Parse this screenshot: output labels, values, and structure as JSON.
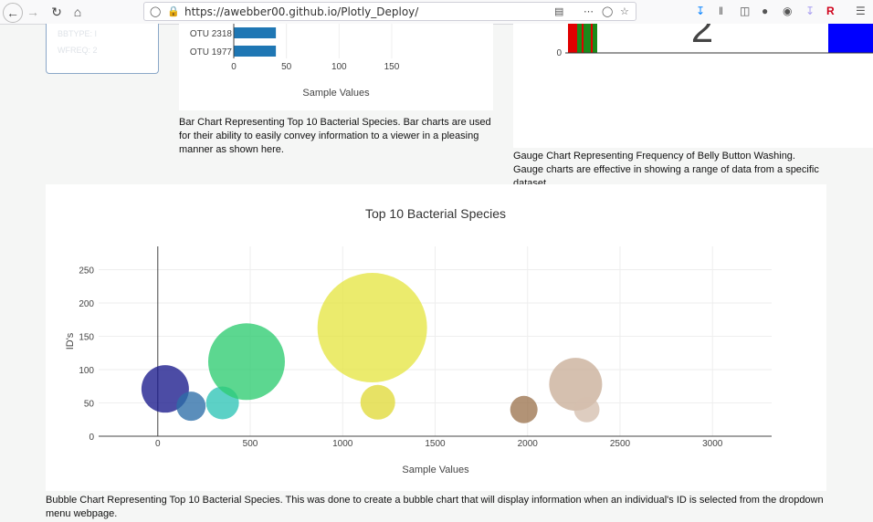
{
  "browser": {
    "url": "https://awebber00.github.io/Plotly_Deploy/"
  },
  "panel": {
    "ghost_lines": [
      "BBTYPE: I",
      "WFREQ: 2"
    ]
  },
  "bar_chart": {
    "y_labels": [
      "OTU 2318",
      "OTU 1977"
    ],
    "x_ticks": [
      "0",
      "50",
      "100",
      "150"
    ],
    "xlabel": "Sample Values",
    "caption": "Bar Chart Representing Top 10 Bacterial Species. Bar charts are used for their ability to easily convey information to a viewer in a pleasing manner as shown here."
  },
  "gauge": {
    "zero_label": "0",
    "value_fragment": "2",
    "caption": "Gauge Chart Representing Frequency of Belly Button Washing. Gauge charts are effective in showing a range of data from a specific dataset."
  },
  "bubble_caption": "Bubble Chart Representing Top 10 Bacterial Species. This was done to create a bubble chart that will display information when an individual's ID is selected from the dropdown menu webpage.",
  "chart_data": [
    {
      "type": "bar",
      "orientation": "horizontal",
      "categories": [
        "OTU 2318",
        "OTU 1977"
      ],
      "values": [
        40,
        40
      ],
      "xlabel": "Sample Values",
      "xlim": [
        0,
        170
      ],
      "x_ticks": [
        0,
        50,
        100,
        150
      ],
      "color": "#1f77b4"
    },
    {
      "type": "scatter",
      "subtype": "bubble",
      "title": "Top 10 Bacterial Species",
      "xlabel": "Sample Values",
      "ylabel": "ID's",
      "xlim": [
        -320,
        3320
      ],
      "ylim": [
        0,
        285
      ],
      "x_ticks": [
        0,
        500,
        1000,
        1500,
        2000,
        2500,
        3000
      ],
      "y_ticks": [
        0,
        50,
        100,
        150,
        200,
        250
      ],
      "grid": true,
      "points": [
        {
          "x": 40,
          "y": 71,
          "r": 26,
          "color": "#1a1a8c"
        },
        {
          "x": 180,
          "y": 45,
          "r": 16,
          "color": "#2d6ea8"
        },
        {
          "x": 350,
          "y": 50,
          "r": 18,
          "color": "#2ec4b6"
        },
        {
          "x": 480,
          "y": 112,
          "r": 42,
          "color": "#2ecc71"
        },
        {
          "x": 1160,
          "y": 163,
          "r": 60,
          "color": "#e5e544"
        },
        {
          "x": 1190,
          "y": 51,
          "r": 19,
          "color": "#e0da3a"
        },
        {
          "x": 1980,
          "y": 40,
          "r": 15,
          "color": "#9c7550"
        },
        {
          "x": 2260,
          "y": 78,
          "r": 29,
          "color": "#c9ae98"
        },
        {
          "x": 2320,
          "y": 40,
          "r": 14,
          "color": "#d5bfae"
        }
      ]
    }
  ]
}
